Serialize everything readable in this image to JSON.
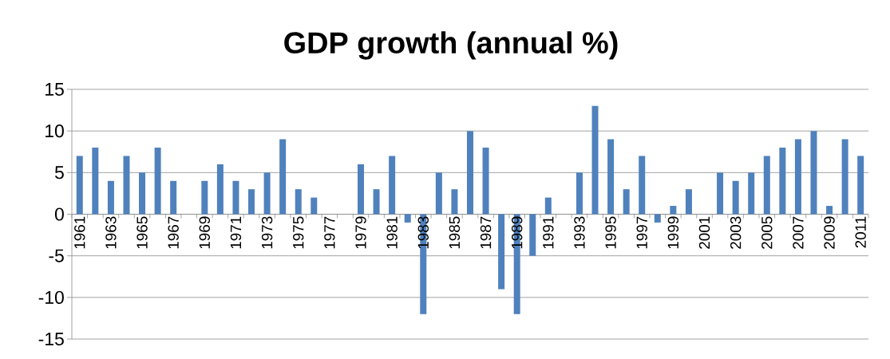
{
  "chart_data": {
    "type": "bar",
    "title": "GDP growth (annual %)",
    "categories": [
      "1961",
      null,
      "1963",
      null,
      "1965",
      null,
      "1967",
      null,
      "1969",
      null,
      "1971",
      null,
      "1973",
      null,
      "1975",
      null,
      "1977",
      null,
      "1979",
      null,
      "1981",
      null,
      "1983",
      null,
      "1985",
      null,
      "1987",
      null,
      "1989",
      null,
      "1991",
      null,
      "1993",
      null,
      "1995",
      null,
      "1997",
      null,
      "1999",
      null,
      "2001",
      null,
      "2003",
      null,
      "2005",
      null,
      "2007",
      null,
      "2009",
      null,
      "2011"
    ],
    "values": [
      7,
      8,
      4,
      7,
      5,
      8,
      4,
      null,
      4,
      6,
      4,
      3,
      5,
      9,
      3,
      2,
      null,
      null,
      6,
      3,
      7,
      -1,
      -12,
      5,
      3,
      10,
      8,
      -9,
      -12,
      -5,
      2,
      null,
      5,
      13,
      9,
      3,
      7,
      -1,
      1,
      3,
      null,
      5,
      4,
      5,
      7,
      8,
      9,
      10,
      1,
      9,
      7
    ],
    "color": "#4f81bd",
    "ylim": [
      -15,
      15
    ],
    "yticks": [
      -15,
      -10,
      -5,
      0,
      5,
      10,
      15
    ],
    "grid": "y"
  }
}
